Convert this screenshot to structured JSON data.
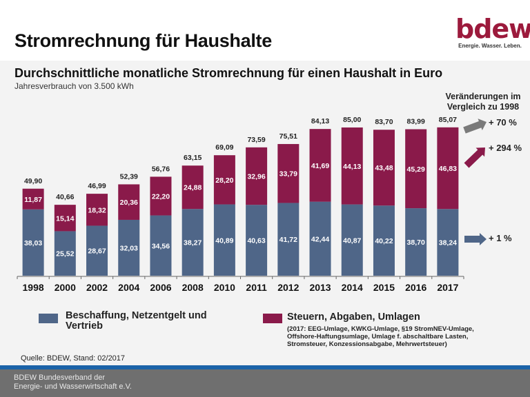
{
  "header": {
    "title": "Stromrechnung für Haushalte",
    "logo_word": "bdew",
    "logo_tagline": "Energie. Wasser. Leben."
  },
  "colors": {
    "blue": "#4f6688",
    "maroon": "#8a1a4a",
    "arrow_gray": "#7a7a7a",
    "brand": "#9c1a3c",
    "footer_rule": "#1b63a8"
  },
  "chart_data": {
    "type": "bar",
    "stacked": true,
    "title": "Durchschnittliche monatliche Stromrechnung für einen Haushalt in Euro",
    "subtitle": "Jahresverbrauch von 3.500 kWh",
    "xlabel": "",
    "ylabel": "",
    "ylim": [
      0,
      90
    ],
    "grid": false,
    "categories": [
      "1998",
      "2000",
      "2002",
      "2004",
      "2006",
      "2008",
      "2010",
      "2011",
      "2012",
      "2013",
      "2014",
      "2015",
      "2016",
      "2017"
    ],
    "series": [
      {
        "name": "Beschaffung, Netzentgelt und Vertrieb",
        "color": "#4f6688",
        "values": [
          38.03,
          25.52,
          28.67,
          32.03,
          34.56,
          38.27,
          40.89,
          40.63,
          41.72,
          42.44,
          40.87,
          40.22,
          38.7,
          38.24
        ],
        "labels": [
          "38,03",
          "25,52",
          "28,67",
          "32,03",
          "34,56",
          "38,27",
          "40,89",
          "40,63",
          "41,72",
          "42,44",
          "40,87",
          "40,22",
          "38,70",
          "38,24"
        ]
      },
      {
        "name": "Steuern, Abgaben, Umlagen",
        "color": "#8a1a4a",
        "values": [
          11.87,
          15.14,
          18.32,
          20.36,
          22.2,
          24.88,
          28.2,
          32.96,
          33.79,
          41.69,
          44.13,
          43.48,
          45.29,
          46.83
        ],
        "labels": [
          "11,87",
          "15,14",
          "18,32",
          "20,36",
          "22,20",
          "24,88",
          "28,20",
          "32,96",
          "33,79",
          "41,69",
          "44,13",
          "43,48",
          "45,29",
          "46,83"
        ]
      }
    ],
    "totals": [
      49.9,
      40.66,
      46.99,
      52.39,
      56.76,
      63.15,
      69.09,
      73.59,
      75.51,
      84.13,
      85.0,
      83.7,
      83.99,
      85.07
    ],
    "total_labels": [
      "49,90",
      "40,66",
      "46,99",
      "52,39",
      "56,76",
      "63,15",
      "69,09",
      "73,59",
      "75,51",
      "84,13",
      "85,00",
      "83,70",
      "83,99",
      "85,07"
    ],
    "annotations": {
      "heading": [
        "Veränderungen im",
        "Vergleich zu 1998"
      ],
      "changes": [
        {
          "target": "total",
          "label": "+ 70 %",
          "color": "#7a7a7a"
        },
        {
          "target": "Steuern, Abgaben, Umlagen",
          "label": "+ 294 %",
          "color": "#8a1a4a"
        },
        {
          "target": "Beschaffung, Netzentgelt und Vertrieb",
          "label": "+ 1 %",
          "color": "#4f6688"
        }
      ]
    },
    "legend": {
      "placement": "bottom",
      "items": [
        {
          "label_lines": [
            "Beschaffung, Netzentgelt und",
            "Vertrieb"
          ],
          "color": "#4f6688"
        },
        {
          "label_lines": [
            "Steuern, Abgaben, Umlagen"
          ],
          "color": "#8a1a4a",
          "note_lines": [
            "(2017: EEG-Umlage, KWKG-Umlage, §19 StromNEV-Umlage,",
            "Offshore-Haftungsumlage,  Umlage f. abschaltbare Lasten,",
            "Stromsteuer, Konzessionsabgabe, Mehrwertsteuer)"
          ]
        }
      ]
    }
  },
  "source": "Quelle: BDEW, Stand: 02/2017",
  "footer": {
    "line1": "BDEW Bundesverband der",
    "line2": "Energie- und Wasserwirtschaft e.V."
  }
}
